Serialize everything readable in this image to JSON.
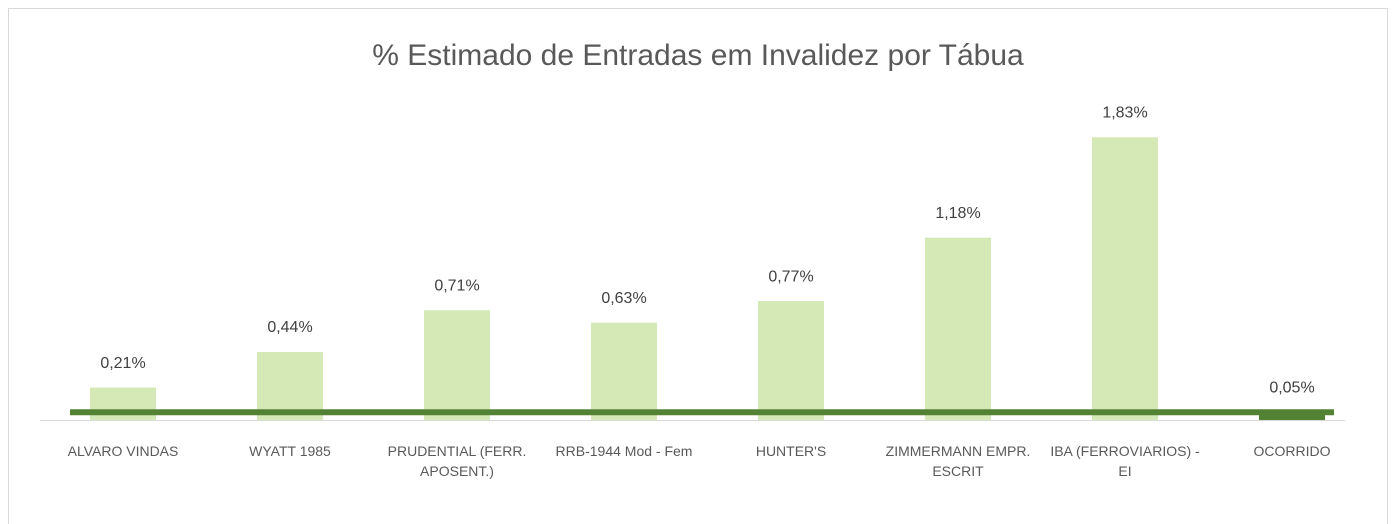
{
  "chart_data": {
    "type": "bar",
    "title": "% Estimado de Entradas em Invalidez por Tábua",
    "categories": [
      "ALVARO VINDAS",
      "WYATT 1985",
      "PRUDENTIAL (FERR. APOSENT.)",
      "RRB-1944 Mod - Fem",
      "HUNTER'S",
      "ZIMMERMANN EMPR. ESCRIT",
      "IBA (FERROVIARIOS) - EI",
      "OCORRIDO"
    ],
    "values": [
      0.21,
      0.44,
      0.71,
      0.63,
      0.77,
      1.18,
      1.83,
      0.05
    ],
    "value_labels": [
      "0,21%",
      "0,44%",
      "0,71%",
      "0,63%",
      "0,77%",
      "1,18%",
      "1,83%",
      "0,05%"
    ],
    "colors": [
      "#d4e9b6",
      "#d4e9b6",
      "#d4e9b6",
      "#d4e9b6",
      "#d4e9b6",
      "#d4e9b6",
      "#d4e9b6",
      "#548235"
    ],
    "ylim": [
      0,
      2
    ]
  }
}
